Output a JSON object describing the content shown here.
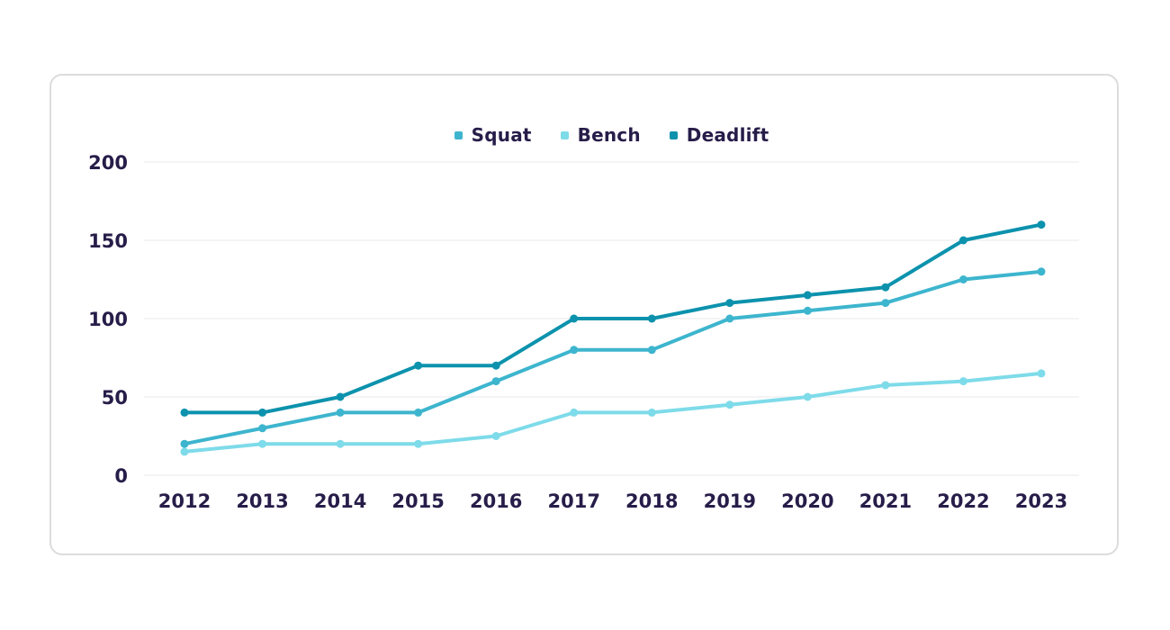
{
  "chart_data": {
    "type": "line",
    "x": [
      "2012",
      "2013",
      "2014",
      "2015",
      "2016",
      "2017",
      "2018",
      "2019",
      "2020",
      "2021",
      "2022",
      "2023"
    ],
    "series": [
      {
        "name": "Squat",
        "color": "#3db5ce",
        "values": [
          20,
          30,
          40,
          40,
          60,
          80,
          80,
          100,
          105,
          110,
          125,
          130
        ]
      },
      {
        "name": "Bench",
        "color": "#7edbe9",
        "values": [
          15,
          20,
          20,
          20,
          25,
          40,
          40,
          45,
          50,
          57.5,
          60,
          65
        ]
      },
      {
        "name": "Deadlift",
        "color": "#0c92ad",
        "values": [
          40,
          40,
          50,
          70,
          70,
          100,
          100,
          110,
          115,
          120,
          150,
          160
        ]
      }
    ],
    "title": "",
    "xlabel": "",
    "ylabel": "",
    "ylim": [
      0,
      200
    ],
    "yticks": [
      0,
      50,
      100,
      150,
      200
    ],
    "grid": "horizontal-only",
    "legend_position": "top-center"
  },
  "colors": {
    "text": "#271d49",
    "gridline": "#f0f0f3",
    "card_border": "#dcdcdc",
    "background": "#ffffff"
  }
}
